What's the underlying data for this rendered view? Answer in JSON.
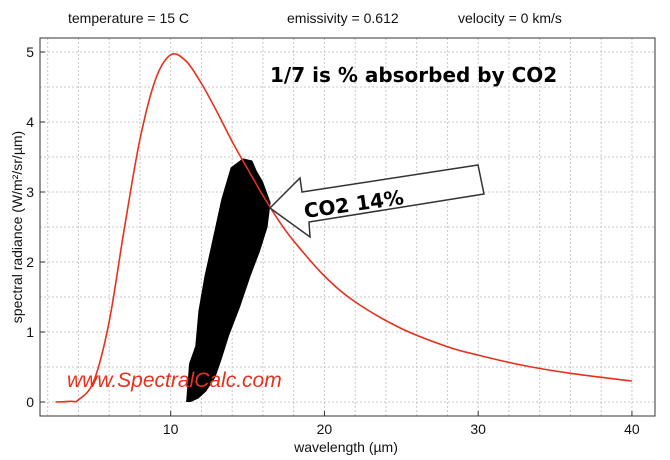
{
  "header": {
    "temperature": "temperature = 15 C",
    "emissivity": "emissivity = 0.612",
    "velocity": "velocity = 0 km/s"
  },
  "annotations": {
    "headline": "1/7 is % absorbed by CO2",
    "arrow_label": "CO2 14%",
    "watermark": "www.SpectralCalc.com"
  },
  "chart_data": {
    "type": "line",
    "xlabel": "wavelength (µm)",
    "ylabel": "spectral radiance (W/m²/sr/µm)",
    "xlim": [
      1.5,
      41.5
    ],
    "ylim": [
      -0.2,
      5.2
    ],
    "xticks": [
      10,
      20,
      30,
      40
    ],
    "yticks": [
      0,
      1,
      2,
      3,
      4,
      5
    ],
    "grid": true,
    "line_color": "#e8301e",
    "series": [
      {
        "x": [
          2.5,
          3.5,
          4,
          5,
          6,
          7,
          8,
          9,
          10,
          11,
          12,
          13,
          14,
          15,
          16,
          17,
          18,
          20,
          22,
          25,
          28,
          30,
          33,
          36,
          40
        ],
        "y": [
          0.0,
          0.01,
          0.03,
          0.3,
          1.15,
          2.5,
          3.75,
          4.6,
          4.96,
          4.87,
          4.55,
          4.15,
          3.72,
          3.33,
          2.95,
          2.6,
          2.3,
          1.8,
          1.43,
          1.05,
          0.79,
          0.67,
          0.52,
          0.41,
          0.3
        ]
      }
    ],
    "absorption_region": {
      "label": "CO2 14%",
      "color": "#000000",
      "x": [
        11.0,
        11.2,
        11.6,
        11.8,
        12.2,
        12.6,
        13.0,
        13.3,
        13.9,
        14.7,
        15.3,
        15.6,
        16.0,
        16.5,
        16.3,
        15.8,
        15.2,
        14.5,
        13.8,
        13.3,
        12.9,
        12.3,
        11.8,
        11.3,
        10.5
      ],
      "y": [
        0.0,
        0.55,
        0.8,
        1.3,
        1.8,
        2.2,
        2.6,
        2.9,
        3.35,
        3.48,
        3.45,
        3.3,
        3.15,
        2.85,
        2.5,
        2.15,
        1.8,
        1.35,
        0.95,
        0.6,
        0.35,
        0.15,
        0.05,
        0.0,
        0.0
      ]
    }
  }
}
